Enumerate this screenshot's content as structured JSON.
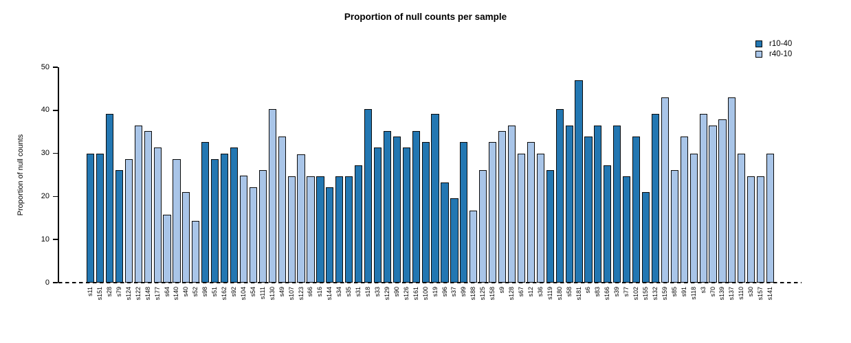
{
  "title": "Proportion of null counts per sample",
  "legend": {
    "items": [
      {
        "label": "r10-40",
        "color": "#2377B2"
      },
      {
        "label": "r40-10",
        "color": "#A9C5E8"
      }
    ]
  },
  "chart_data": {
    "type": "bar",
    "title": "Proportion of null counts per sample",
    "xlabel": "",
    "ylabel": "Proportion of null counts",
    "ylim": [
      0,
      50
    ],
    "yticks": [
      0,
      10,
      20,
      30,
      40,
      50
    ],
    "grid": false,
    "legend_position": "top-right",
    "baseline_style": "dashed",
    "series": [
      {
        "name": "r10-40",
        "color": "#2377B2"
      },
      {
        "name": "r40-10",
        "color": "#A9C5E8"
      }
    ],
    "bars": [
      {
        "label": "s11",
        "value": 29.9,
        "series": "r10-40"
      },
      {
        "label": "s151",
        "value": 29.9,
        "series": "r10-40"
      },
      {
        "label": "s28",
        "value": 39.2,
        "series": "r10-40"
      },
      {
        "label": "s79",
        "value": 26.1,
        "series": "r10-40"
      },
      {
        "label": "s124",
        "value": 28.7,
        "series": "r40-10"
      },
      {
        "label": "s122",
        "value": 36.5,
        "series": "r40-10"
      },
      {
        "label": "s148",
        "value": 35.2,
        "series": "r40-10"
      },
      {
        "label": "s177",
        "value": 31.4,
        "series": "r40-10"
      },
      {
        "label": "s64",
        "value": 15.7,
        "series": "r40-10"
      },
      {
        "label": "s140",
        "value": 28.7,
        "series": "r40-10"
      },
      {
        "label": "s40",
        "value": 21.0,
        "series": "r40-10"
      },
      {
        "label": "s52",
        "value": 14.4,
        "series": "r40-10"
      },
      {
        "label": "s98",
        "value": 32.6,
        "series": "r10-40"
      },
      {
        "label": "s51",
        "value": 28.7,
        "series": "r10-40"
      },
      {
        "label": "s162",
        "value": 29.9,
        "series": "r10-40"
      },
      {
        "label": "s92",
        "value": 31.4,
        "series": "r10-40"
      },
      {
        "label": "s104",
        "value": 24.8,
        "series": "r40-10"
      },
      {
        "label": "s54",
        "value": 22.1,
        "series": "r40-10"
      },
      {
        "label": "s111",
        "value": 26.1,
        "series": "r40-10"
      },
      {
        "label": "s130",
        "value": 40.3,
        "series": "r40-10"
      },
      {
        "label": "s49",
        "value": 33.9,
        "series": "r40-10"
      },
      {
        "label": "s107",
        "value": 24.7,
        "series": "r40-10"
      },
      {
        "label": "s123",
        "value": 29.8,
        "series": "r40-10"
      },
      {
        "label": "s66",
        "value": 24.7,
        "series": "r40-10"
      },
      {
        "label": "s16",
        "value": 24.7,
        "series": "r10-40"
      },
      {
        "label": "s144",
        "value": 22.1,
        "series": "r10-40"
      },
      {
        "label": "s34",
        "value": 24.7,
        "series": "r10-40"
      },
      {
        "label": "s35",
        "value": 24.7,
        "series": "r10-40"
      },
      {
        "label": "s31",
        "value": 27.3,
        "series": "r10-40"
      },
      {
        "label": "s18",
        "value": 40.3,
        "series": "r10-40"
      },
      {
        "label": "s33",
        "value": 31.4,
        "series": "r10-40"
      },
      {
        "label": "s129",
        "value": 35.2,
        "series": "r10-40"
      },
      {
        "label": "s90",
        "value": 33.9,
        "series": "r10-40"
      },
      {
        "label": "s126",
        "value": 31.4,
        "series": "r10-40"
      },
      {
        "label": "s161",
        "value": 35.2,
        "series": "r10-40"
      },
      {
        "label": "s100",
        "value": 32.6,
        "series": "r10-40"
      },
      {
        "label": "s19",
        "value": 39.2,
        "series": "r10-40"
      },
      {
        "label": "s96",
        "value": 23.3,
        "series": "r10-40"
      },
      {
        "label": "s37",
        "value": 19.6,
        "series": "r10-40"
      },
      {
        "label": "s99",
        "value": 32.6,
        "series": "r10-40"
      },
      {
        "label": "s188",
        "value": 16.8,
        "series": "r40-10"
      },
      {
        "label": "s125",
        "value": 26.1,
        "series": "r40-10"
      },
      {
        "label": "s158",
        "value": 32.6,
        "series": "r40-10"
      },
      {
        "label": "s9",
        "value": 35.2,
        "series": "r40-10"
      },
      {
        "label": "s128",
        "value": 36.5,
        "series": "r40-10"
      },
      {
        "label": "s67",
        "value": 29.9,
        "series": "r40-10"
      },
      {
        "label": "s12",
        "value": 32.6,
        "series": "r40-10"
      },
      {
        "label": "s36",
        "value": 29.9,
        "series": "r40-10"
      },
      {
        "label": "s119",
        "value": 26.1,
        "series": "r10-40"
      },
      {
        "label": "s180",
        "value": 40.3,
        "series": "r10-40"
      },
      {
        "label": "s58",
        "value": 36.5,
        "series": "r10-40"
      },
      {
        "label": "s181",
        "value": 46.9,
        "series": "r10-40"
      },
      {
        "label": "s6",
        "value": 33.9,
        "series": "r10-40"
      },
      {
        "label": "s83",
        "value": 36.5,
        "series": "r10-40"
      },
      {
        "label": "s166",
        "value": 27.3,
        "series": "r10-40"
      },
      {
        "label": "s39",
        "value": 36.5,
        "series": "r10-40"
      },
      {
        "label": "s77",
        "value": 24.7,
        "series": "r10-40"
      },
      {
        "label": "s102",
        "value": 33.9,
        "series": "r10-40"
      },
      {
        "label": "s155",
        "value": 21.0,
        "series": "r10-40"
      },
      {
        "label": "s132",
        "value": 39.2,
        "series": "r10-40"
      },
      {
        "label": "s159",
        "value": 43.0,
        "series": "r40-10"
      },
      {
        "label": "s85",
        "value": 26.1,
        "series": "r40-10"
      },
      {
        "label": "s91",
        "value": 33.9,
        "series": "r40-10"
      },
      {
        "label": "s118",
        "value": 29.9,
        "series": "r40-10"
      },
      {
        "label": "s3",
        "value": 39.2,
        "series": "r40-10"
      },
      {
        "label": "s70",
        "value": 36.5,
        "series": "r40-10"
      },
      {
        "label": "s139",
        "value": 37.9,
        "series": "r40-10"
      },
      {
        "label": "s137",
        "value": 43.0,
        "series": "r40-10"
      },
      {
        "label": "s110",
        "value": 29.9,
        "series": "r40-10"
      },
      {
        "label": "s30",
        "value": 24.7,
        "series": "r40-10"
      },
      {
        "label": "s157",
        "value": 24.7,
        "series": "r40-10"
      },
      {
        "label": "s141",
        "value": 29.9,
        "series": "r40-10"
      }
    ]
  }
}
